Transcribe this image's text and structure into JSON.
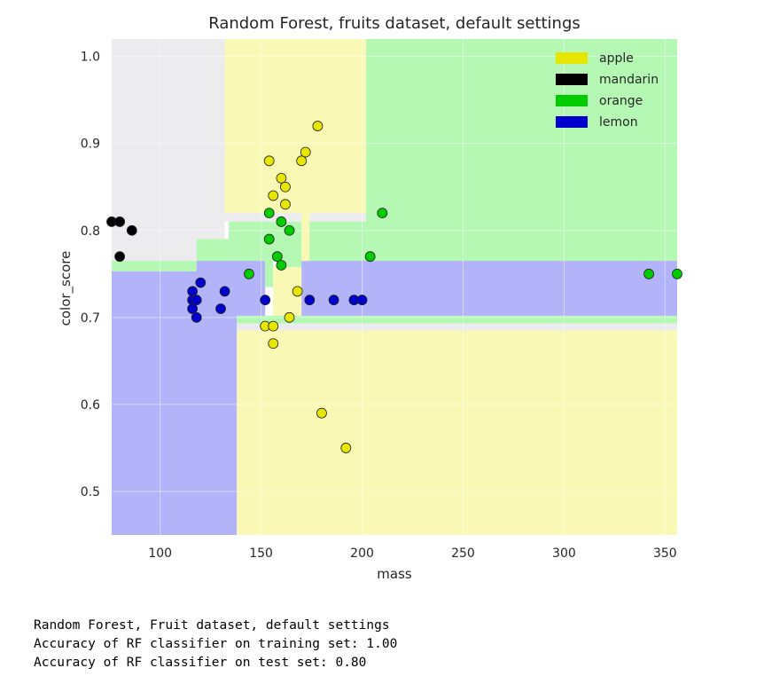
{
  "chart_data": {
    "type": "scatter",
    "title": "Random Forest, fruits dataset, default settings",
    "xlabel": "mass",
    "ylabel": "color_score",
    "xlim": [
      76,
      356
    ],
    "ylim": [
      0.45,
      1.02
    ],
    "xticks": [
      100,
      150,
      200,
      250,
      300,
      350
    ],
    "yticks": [
      0.5,
      0.6,
      0.7,
      0.8,
      0.9,
      1.0
    ],
    "grid": true,
    "legend_position": "top-right",
    "legend": [
      {
        "name": "apple",
        "color": "#e6e600"
      },
      {
        "name": "mandarin",
        "color": "#000000"
      },
      {
        "name": "orange",
        "color": "#00cc00"
      },
      {
        "name": "lemon",
        "color": "#0000cc"
      }
    ],
    "region_colors": {
      "apple": "#f9f9b5",
      "mandarin": "#ececef",
      "orange": "#b4f8b4",
      "lemon": "#b3b3f9"
    },
    "decision_regions": [
      {
        "class": "mandarin",
        "x": [
          76,
          132
        ],
        "y": [
          0.765,
          1.02
        ]
      },
      {
        "class": "apple",
        "x": [
          132,
          202
        ],
        "y": [
          0.82,
          1.02
        ]
      },
      {
        "class": "orange",
        "x": [
          202,
          356
        ],
        "y": [
          0.765,
          1.02
        ]
      },
      {
        "class": "orange",
        "x": [
          76,
          118
        ],
        "y": [
          0.753,
          0.765
        ]
      },
      {
        "class": "mandarin",
        "x": [
          132,
          202
        ],
        "y": [
          0.81,
          0.82
        ]
      },
      {
        "class": "orange",
        "x": [
          134,
          202
        ],
        "y": [
          0.765,
          0.81
        ]
      },
      {
        "class": "orange",
        "x": [
          118,
          134
        ],
        "y": [
          0.765,
          0.79
        ]
      },
      {
        "class": "lemon",
        "x": [
          76,
          138
        ],
        "y": [
          0.45,
          0.753
        ]
      },
      {
        "class": "apple",
        "x": [
          138,
          356
        ],
        "y": [
          0.45,
          0.685
        ]
      },
      {
        "class": "mandarin",
        "x": [
          138,
          356
        ],
        "y": [
          0.685,
          0.693
        ]
      },
      {
        "class": "orange",
        "x": [
          138,
          356
        ],
        "y": [
          0.693,
          0.702
        ]
      },
      {
        "class": "lemon",
        "x": [
          118,
          152
        ],
        "y": [
          0.702,
          0.765
        ]
      },
      {
        "class": "orange",
        "x": [
          152,
          156
        ],
        "y": [
          0.735,
          0.765
        ]
      },
      {
        "class": "apple",
        "x": [
          156,
          170
        ],
        "y": [
          0.702,
          0.758
        ]
      },
      {
        "class": "orange",
        "x": [
          158,
          170
        ],
        "y": [
          0.758,
          0.8
        ]
      },
      {
        "class": "lemon",
        "x": [
          170,
          356
        ],
        "y": [
          0.702,
          0.765
        ]
      },
      {
        "class": "apple",
        "x": [
          170,
          174
        ],
        "y": [
          0.765,
          0.82
        ]
      }
    ],
    "series": [
      {
        "name": "apple",
        "color": "#e6e600",
        "points": [
          [
            154,
            0.88
          ],
          [
            156,
            0.84
          ],
          [
            160,
            0.86
          ],
          [
            162,
            0.85
          ],
          [
            162,
            0.83
          ],
          [
            170,
            0.88
          ],
          [
            172,
            0.89
          ],
          [
            178,
            0.92
          ],
          [
            152,
            0.69
          ],
          [
            156,
            0.69
          ],
          [
            156,
            0.67
          ],
          [
            164,
            0.7
          ],
          [
            168,
            0.73
          ],
          [
            180,
            0.59
          ],
          [
            192,
            0.55
          ]
        ]
      },
      {
        "name": "mandarin",
        "color": "#000000",
        "points": [
          [
            76,
            0.81
          ],
          [
            80,
            0.81
          ],
          [
            86,
            0.8
          ],
          [
            80,
            0.77
          ]
        ]
      },
      {
        "name": "orange",
        "color": "#00cc00",
        "points": [
          [
            154,
            0.82
          ],
          [
            160,
            0.81
          ],
          [
            164,
            0.8
          ],
          [
            154,
            0.79
          ],
          [
            158,
            0.77
          ],
          [
            160,
            0.76
          ],
          [
            144,
            0.75
          ],
          [
            204,
            0.77
          ],
          [
            210,
            0.82
          ],
          [
            342,
            0.75
          ],
          [
            356,
            0.75
          ]
        ]
      },
      {
        "name": "lemon",
        "color": "#0000cc",
        "points": [
          [
            116,
            0.73
          ],
          [
            116,
            0.72
          ],
          [
            116,
            0.71
          ],
          [
            118,
            0.72
          ],
          [
            118,
            0.7
          ],
          [
            120,
            0.74
          ],
          [
            130,
            0.71
          ],
          [
            132,
            0.73
          ],
          [
            152,
            0.72
          ],
          [
            174,
            0.72
          ],
          [
            186,
            0.72
          ],
          [
            196,
            0.72
          ],
          [
            200,
            0.72
          ]
        ]
      }
    ]
  },
  "console": {
    "lines": [
      "Random Forest, Fruit dataset, default settings",
      "Accuracy of RF classifier on training set: 1.00",
      "Accuracy of RF classifier on test set: 0.80"
    ]
  }
}
